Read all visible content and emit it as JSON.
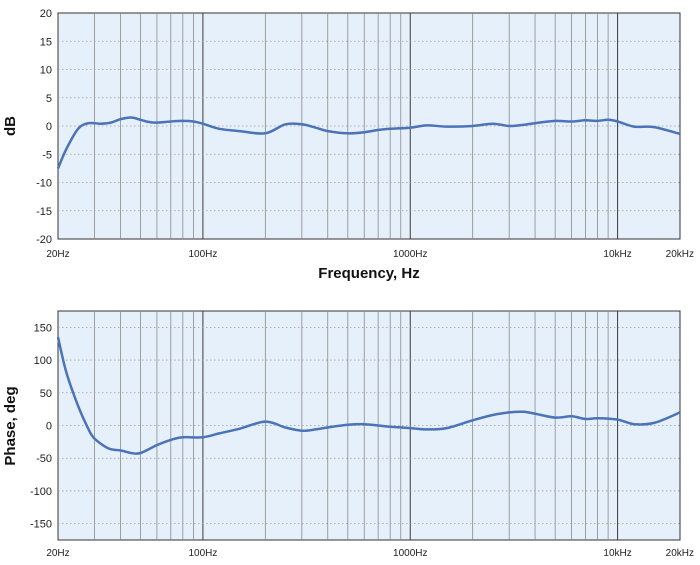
{
  "colors": {
    "plot_bg": "#e6f0fb",
    "line": "#4a73b8",
    "grid_major": "#3a3a3a",
    "grid_minor": "#8a8a8a"
  },
  "chart_data": [
    {
      "type": "line",
      "title": "",
      "xscale": "log",
      "xlim": [
        20,
        20000
      ],
      "ylim": [
        -20,
        20
      ],
      "xlabel": "Frequency, Hz",
      "ylabel": "dB",
      "x_tick_labels": [
        "20Hz",
        "100Hz",
        "1000Hz",
        "10kHz",
        "20kHz"
      ],
      "y_ticks": [
        -20,
        -15,
        -10,
        -5,
        0,
        5,
        10,
        15,
        20
      ],
      "y_tick_labels": [
        "-20",
        "-15",
        "-10",
        "-5",
        "0",
        "5",
        "10",
        "15",
        "20"
      ],
      "grid": true,
      "series": [
        {
          "x": [
            20,
            22,
            25,
            28,
            32,
            36,
            40,
            45,
            50,
            55,
            60,
            70,
            80,
            90,
            100,
            120,
            150,
            200,
            250,
            300,
            350,
            400,
            500,
            600,
            700,
            800,
            1000,
            1200,
            1500,
            2000,
            2500,
            3000,
            3500,
            4000,
            5000,
            6000,
            7000,
            8000,
            9000,
            10000,
            12000,
            15000,
            20000
          ],
          "y": [
            -7.5,
            -4,
            -0.5,
            0.5,
            0.4,
            0.6,
            1.2,
            1.5,
            1.1,
            0.7,
            0.6,
            0.8,
            0.9,
            0.8,
            0.4,
            -0.5,
            -0.9,
            -1.3,
            0.3,
            0.3,
            -0.3,
            -0.9,
            -1.3,
            -1.1,
            -0.7,
            -0.5,
            -0.3,
            0.1,
            -0.1,
            0.0,
            0.4,
            0.0,
            0.2,
            0.5,
            0.9,
            0.8,
            1.0,
            0.9,
            1.1,
            0.8,
            -0.1,
            -0.2,
            -1.4
          ]
        }
      ]
    },
    {
      "type": "line",
      "title": "",
      "xscale": "log",
      "xlim": [
        20,
        20000
      ],
      "ylim": [
        -175,
        175
      ],
      "xlabel": "",
      "ylabel": "Phase, deg",
      "x_tick_labels": [
        "20Hz",
        "100Hz",
        "1000Hz",
        "10kHz",
        "20kHz"
      ],
      "y_ticks": [
        -150,
        -100,
        -50,
        0,
        50,
        100,
        150
      ],
      "y_tick_labels": [
        "-150",
        "-100",
        "-50",
        "0",
        "50",
        "100",
        "150"
      ],
      "grid": true,
      "series": [
        {
          "x": [
            20,
            22,
            25,
            28,
            30,
            35,
            40,
            45,
            50,
            60,
            70,
            80,
            100,
            120,
            150,
            200,
            250,
            300,
            350,
            400,
            500,
            600,
            700,
            800,
            1000,
            1200,
            1500,
            2000,
            2500,
            3000,
            3500,
            4000,
            5000,
            6000,
            7000,
            8000,
            10000,
            12000,
            15000,
            20000
          ],
          "y": [
            135,
            80,
            30,
            -5,
            -20,
            -35,
            -38,
            -42,
            -42,
            -30,
            -22,
            -18,
            -18,
            -12,
            -5,
            6,
            -3,
            -8,
            -6,
            -3,
            1,
            2,
            0,
            -2,
            -4,
            -6,
            -4,
            8,
            16,
            20,
            21,
            18,
            12,
            14,
            10,
            11,
            9,
            2,
            4,
            20
          ]
        }
      ]
    }
  ]
}
